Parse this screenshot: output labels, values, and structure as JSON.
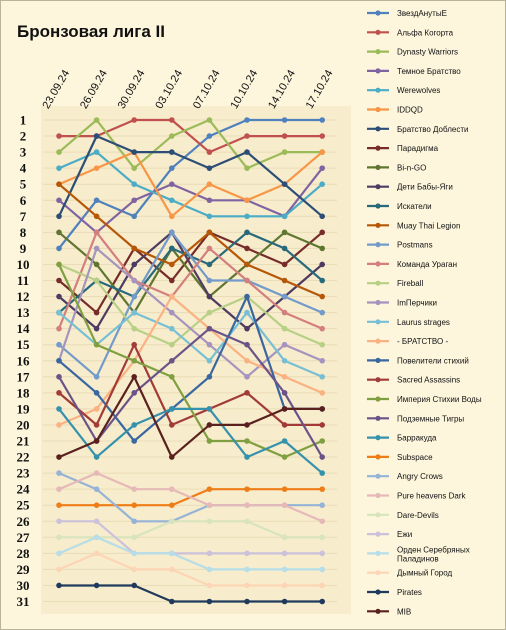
{
  "chart_data": {
    "type": "line",
    "title": "Бронзовая лига II",
    "x": [
      "23.09.24",
      "26.09.24",
      "30.09.24",
      "03.10.24",
      "07.10.24",
      "10.10.24",
      "14.10.24",
      "17.10.24"
    ],
    "y_ticks": [
      "1",
      "2",
      "3",
      "4",
      "5",
      "6",
      "7",
      "8",
      "9",
      "10",
      "11",
      "12",
      "13",
      "14",
      "15",
      "16",
      "17",
      "18",
      "19",
      "20",
      "21",
      "22",
      "23",
      "24",
      "25",
      "26",
      "27",
      "28",
      "29",
      "30",
      "31"
    ],
    "ylim": [
      1,
      31
    ],
    "y_inverted": true,
    "grid": true,
    "legend_position": "right",
    "series": [
      {
        "name": "ЗвездАнутыЕ",
        "color": "#4f81bd",
        "values": [
          9,
          6,
          7,
          4,
          2,
          1,
          1,
          1
        ]
      },
      {
        "name": "Альфа Когорта",
        "color": "#c0504d",
        "values": [
          2,
          2,
          1,
          1,
          3,
          2,
          2,
          2
        ]
      },
      {
        "name": "Dynasty Warriors",
        "color": "#9bbb59",
        "values": [
          3,
          1,
          4,
          2,
          1,
          4,
          3,
          3
        ]
      },
      {
        "name": "Темное Братство",
        "color": "#8064a2",
        "values": [
          6,
          8,
          6,
          5,
          6,
          6,
          7,
          4
        ]
      },
      {
        "name": "Werewolves",
        "color": "#4bacc6",
        "values": [
          4,
          3,
          5,
          6,
          7,
          7,
          7,
          5
        ]
      },
      {
        "name": "IDDQD",
        "color": "#f79646",
        "values": [
          5,
          4,
          3,
          7,
          5,
          6,
          5,
          3
        ]
      },
      {
        "name": "Братство Доблести",
        "color": "#2c4d75",
        "values": [
          7,
          2,
          3,
          3,
          4,
          3,
          5,
          7
        ]
      },
      {
        "name": "Парадигма",
        "color": "#772c2a",
        "values": [
          11,
          13,
          9,
          11,
          8,
          9,
          10,
          8
        ]
      },
      {
        "name": "Bi-n-GO",
        "color": "#5f7530",
        "values": [
          8,
          10,
          13,
          9,
          12,
          10,
          8,
          9
        ]
      },
      {
        "name": "Дети Бабы-Яги",
        "color": "#4d3b62",
        "values": [
          12,
          14,
          10,
          8,
          12,
          14,
          12,
          10
        ]
      },
      {
        "name": "Искатели",
        "color": "#276a7c",
        "values": [
          13,
          11,
          12,
          9,
          10,
          8,
          9,
          11
        ]
      },
      {
        "name": "Muay Thai Legion",
        "color": "#b65708",
        "values": [
          5,
          7,
          9,
          10,
          8,
          10,
          11,
          12
        ]
      },
      {
        "name": "Postmans",
        "color": "#729aca",
        "values": [
          15,
          17,
          12,
          8,
          11,
          11,
          12,
          13
        ]
      },
      {
        "name": "Команда Ураган",
        "color": "#d37f7d",
        "values": [
          14,
          8,
          11,
          12,
          9,
          11,
          13,
          14
        ]
      },
      {
        "name": "Fireball",
        "color": "#b7d085",
        "values": [
          10,
          11,
          14,
          15,
          13,
          12,
          14,
          15
        ]
      },
      {
        "name": "ImПерчики",
        "color": "#a594be",
        "values": [
          16,
          9,
          11,
          13,
          15,
          17,
          15,
          16
        ]
      },
      {
        "name": "Laurus strages",
        "color": "#77bfd4",
        "values": [
          13,
          15,
          13,
          14,
          16,
          13,
          16,
          17
        ]
      },
      {
        "name": "- БРАТСТВО -",
        "color": "#fab282",
        "values": [
          20,
          19,
          16,
          12,
          14,
          16,
          17,
          18
        ]
      },
      {
        "name": "Повелители стихий",
        "color": "#3a67a0",
        "values": [
          16,
          18,
          21,
          19,
          17,
          12,
          19,
          19
        ]
      },
      {
        "name": "Sacred Assassins",
        "color": "#a23b38",
        "values": [
          18,
          20,
          15,
          20,
          19,
          18,
          20,
          20
        ]
      },
      {
        "name": "Империя Стихии Воды",
        "color": "#809f40",
        "values": [
          10,
          15,
          16,
          17,
          21,
          21,
          22,
          21
        ]
      },
      {
        "name": "Подземные Тигры",
        "color": "#6b5388",
        "values": [
          17,
          21,
          18,
          16,
          14,
          15,
          18,
          22
        ]
      },
      {
        "name": "Барракуда",
        "color": "#3692ac",
        "values": [
          19,
          22,
          20,
          19,
          19,
          22,
          21,
          23
        ]
      },
      {
        "name": "Subspace",
        "color": "#ef7d17",
        "values": [
          25,
          25,
          25,
          25,
          24,
          24,
          24,
          24
        ]
      },
      {
        "name": "Angry Crows",
        "color": "#95b3d7",
        "values": [
          23,
          24,
          26,
          26,
          25,
          25,
          25,
          25
        ]
      },
      {
        "name": "Pure heavens Dark",
        "color": "#e6b9b8",
        "values": [
          24,
          23,
          24,
          24,
          25,
          25,
          25,
          26
        ]
      },
      {
        "name": "Dare-Devils",
        "color": "#d7e4bc",
        "values": [
          27,
          27,
          27,
          26,
          26,
          26,
          27,
          27
        ]
      },
      {
        "name": "Ежи",
        "color": "#ccc1da",
        "values": [
          26,
          26,
          28,
          28,
          28,
          28,
          28,
          28
        ]
      },
      {
        "name": "Орден Серебряных Паладинов",
        "color": "#b6dde8",
        "values": [
          28,
          27,
          28,
          28,
          29,
          29,
          29,
          29
        ]
      },
      {
        "name": "Дымный Город",
        "color": "#fcd5b5",
        "values": [
          29,
          28,
          29,
          29,
          30,
          30,
          30,
          30
        ]
      },
      {
        "name": "Pirates",
        "color": "#1f3a5c",
        "values": [
          30,
          30,
          30,
          31,
          31,
          31,
          31,
          31
        ]
      },
      {
        "name": "MIB",
        "color": "#5a201e",
        "values": [
          22,
          21,
          17,
          22,
          20,
          20,
          19,
          19
        ]
      }
    ]
  }
}
